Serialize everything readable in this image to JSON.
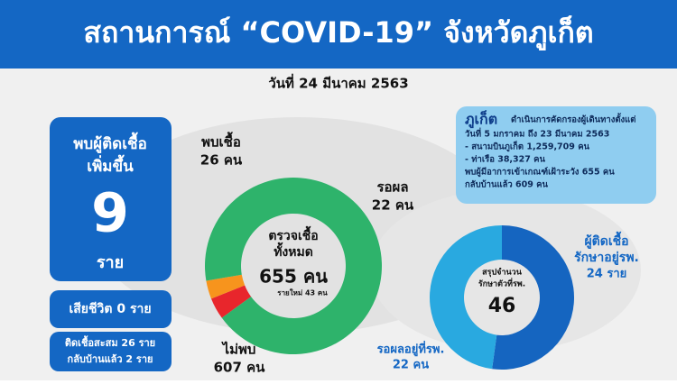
{
  "header": {
    "title": "สถานการณ์ “COVID-19” จังหวัดภูเก็ต",
    "date": "วันที่ 24 มีนาคม 2563"
  },
  "left_panel": {
    "new_cases_lines": [
      "พบผู้ติดเชื้อ",
      "เพิ่มขึ้น"
    ],
    "new_cases_value": "9",
    "new_cases_unit": "ราย",
    "deaths": "เสียชีวิต 0 ราย",
    "cumulative_lines": [
      "ติดเชื้อสะสม 26 ราย",
      "กลับบ้านแล้ว 2 ราย"
    ]
  },
  "donut_tests": {
    "center_lines": [
      "ตรวจเชื้อ",
      "ทั้งหมด"
    ],
    "total": "655 คน",
    "new": "รายใหม่ 43 คน",
    "segments": [
      {
        "name": "พบเชื้อ",
        "value": 26,
        "value_label": "26 คน",
        "color": "#e8262c"
      },
      {
        "name": "รอผล",
        "value": 22,
        "value_label": "22 คน",
        "color": "#f7941d"
      },
      {
        "name": "ไม่พบ",
        "value": 607,
        "value_label": "607 คน",
        "color": "#2eb36b"
      }
    ]
  },
  "info": {
    "title": "ภูเก็ต",
    "lines": [
      "ดำเนินการคัดกรองผู้เดินทางตั้งแต่",
      "วันที่ 5 มกราคม ถึง 23 มีนาคม 2563",
      "- สนามบินภูเก็ต 1,259,709 คน",
      "- ท่าเรือ 38,327 คน",
      "พบผู้มีอาการเข้าเกณฑ์เฝ้าระวัง 655 คน",
      "กลับบ้านแล้ว 609 คน"
    ]
  },
  "donut_hospital": {
    "center_lines": [
      "สรุปจำนวน",
      "รักษาตัวที่รพ."
    ],
    "total": "46",
    "segments": [
      {
        "name_lines": [
          "ผู้ติดเชื้อ",
          "รักษาอยู่รพ."
        ],
        "value": 24,
        "value_label": "24 ราย",
        "color": "#1565c0"
      },
      {
        "name_lines": [
          "รอผลอยู่ที่รพ."
        ],
        "value": 22,
        "value_label": "22 คน",
        "color": "#29a9e0"
      }
    ]
  }
}
